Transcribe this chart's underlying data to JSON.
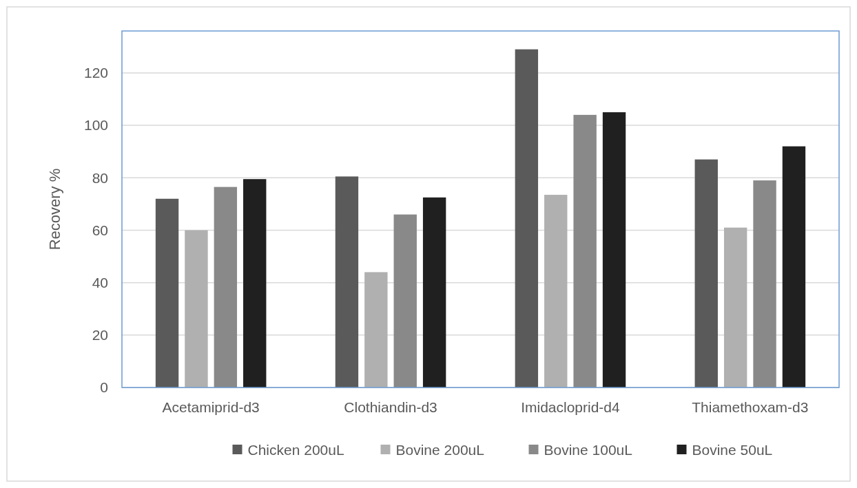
{
  "chart_data": {
    "type": "bar",
    "ylabel": "Recovery %",
    "categories": [
      "Acetamiprid-d3",
      "Clothiandin-d3",
      "Imidacloprid-d4",
      "Thiamethoxam-d3"
    ],
    "series": [
      {
        "name": "Chicken 200uL",
        "color": "#5a5a5a",
        "values": [
          72,
          80.5,
          129,
          87
        ]
      },
      {
        "name": "Bovine 200uL",
        "color": "#b0b0b0",
        "values": [
          60,
          44,
          73.5,
          61
        ]
      },
      {
        "name": "Bovine 100uL",
        "color": "#898989",
        "values": [
          76.5,
          66,
          104,
          79
        ]
      },
      {
        "name": "Bovine 50uL",
        "color": "#202020",
        "values": [
          79.5,
          72.5,
          105,
          92
        ]
      }
    ],
    "ylim": [
      0,
      136
    ],
    "yticks": [
      0,
      20,
      40,
      60,
      80,
      100,
      120
    ],
    "grid": "y",
    "legend": "bottom"
  }
}
